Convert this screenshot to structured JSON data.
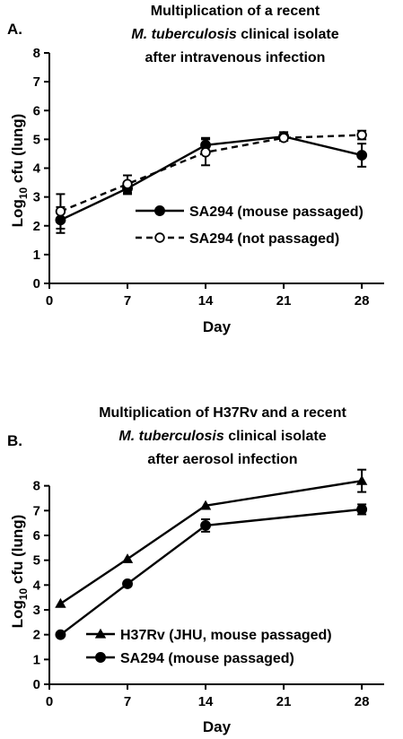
{
  "chart_data": [
    {
      "panel": "A.",
      "type": "line",
      "title_lines": [
        "Multiplication of a recent",
        "M. tuberculosis clinical isolate",
        "after intravenous infection"
      ],
      "title_italic_part": "M. tuberculosis",
      "xlabel": "Day",
      "ylabel_prefix": "Log",
      "ylabel_sub": "10",
      "ylabel_suffix": " cfu (lung)",
      "xlim": [
        0,
        30
      ],
      "ylim": [
        0,
        8
      ],
      "xticks": [
        0,
        7,
        14,
        21,
        28
      ],
      "yticks": [
        0,
        1,
        2,
        3,
        4,
        5,
        6,
        7,
        8
      ],
      "legend_position": "center-right",
      "series": [
        {
          "name": "SA294 (mouse passaged)",
          "marker": "filled-circle",
          "line": "solid",
          "x": [
            1,
            7,
            14,
            21,
            28
          ],
          "y": [
            2.2,
            3.3,
            4.8,
            5.1,
            4.45
          ],
          "err": [
            0.45,
            0.2,
            0.25,
            0.15,
            0.4
          ]
        },
        {
          "name": "SA294 (not passaged)",
          "marker": "open-circle",
          "line": "dashed",
          "x": [
            1,
            7,
            14,
            21,
            28
          ],
          "y": [
            2.5,
            3.45,
            4.55,
            5.05,
            5.15
          ],
          "err": [
            0.6,
            0.3,
            0.45,
            0.1,
            0.15
          ]
        }
      ]
    },
    {
      "panel": "B.",
      "type": "line",
      "title_lines": [
        "Multiplication of H37Rv and a recent",
        "M. tuberculosis clinical isolate",
        "after aerosol infection"
      ],
      "title_italic_part": "M. tuberculosis",
      "xlabel": "Day",
      "ylabel_prefix": "Log",
      "ylabel_sub": "10",
      "ylabel_suffix": " cfu (lung)",
      "xlim": [
        0,
        30
      ],
      "ylim": [
        0,
        9
      ],
      "xticks": [
        0,
        7,
        14,
        21,
        28
      ],
      "yticks": [
        0,
        1,
        2,
        3,
        4,
        5,
        6,
        7,
        8
      ],
      "legend_position": "bottom-center",
      "series": [
        {
          "name": "H37Rv (JHU, mouse passaged)",
          "marker": "filled-triangle",
          "line": "solid",
          "x": [
            1,
            7,
            14,
            28
          ],
          "y": [
            3.25,
            5.05,
            7.2,
            8.2
          ],
          "err": [
            0.05,
            0.05,
            0.05,
            0.45
          ]
        },
        {
          "name": "SA294 (mouse passaged)",
          "marker": "filled-circle",
          "line": "solid",
          "x": [
            1,
            7,
            14,
            28
          ],
          "y": [
            2.0,
            4.05,
            6.4,
            7.05
          ],
          "err": [
            0.05,
            0.05,
            0.25,
            0.2
          ]
        }
      ]
    }
  ]
}
